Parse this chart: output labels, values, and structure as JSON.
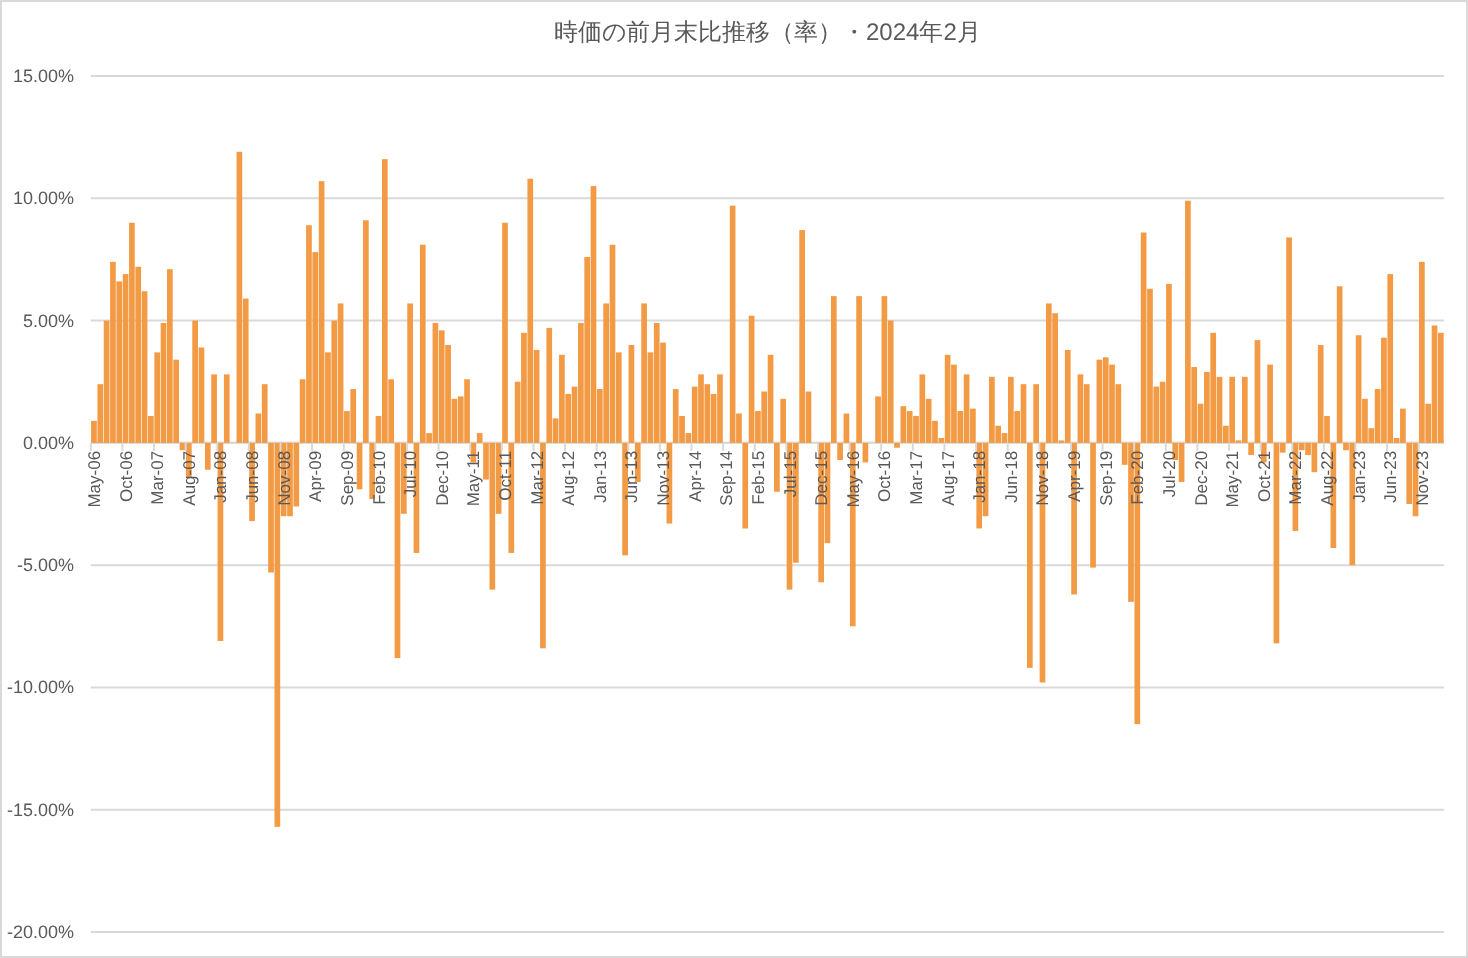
{
  "chart_data": {
    "type": "bar",
    "title": "時価の前月末比推移（率）・2024年2月",
    "categories": [
      "May-06",
      null,
      null,
      null,
      null,
      "Oct-06",
      null,
      null,
      null,
      null,
      "Mar-07",
      null,
      null,
      null,
      null,
      "Aug-07",
      null,
      null,
      null,
      null,
      "Jan-08",
      null,
      null,
      null,
      null,
      "Jun-08",
      null,
      null,
      null,
      null,
      "Nov-08",
      null,
      null,
      null,
      null,
      "Apr-09",
      null,
      null,
      null,
      null,
      "Sep-09",
      null,
      null,
      null,
      null,
      "Feb-10",
      null,
      null,
      null,
      null,
      "Jul-10",
      null,
      null,
      null,
      null,
      "Dec-10",
      null,
      null,
      null,
      null,
      "May-11",
      null,
      null,
      null,
      null,
      "Oct-11",
      null,
      null,
      null,
      null,
      "Mar-12",
      null,
      null,
      null,
      null,
      "Aug-12",
      null,
      null,
      null,
      null,
      "Jan-13",
      null,
      null,
      null,
      null,
      "Jun-13",
      null,
      null,
      null,
      null,
      "Nov-13",
      null,
      null,
      null,
      null,
      "Apr-14",
      null,
      null,
      null,
      null,
      "Sep-14",
      null,
      null,
      null,
      null,
      "Feb-15",
      null,
      null,
      null,
      null,
      "Jul-15",
      null,
      null,
      null,
      null,
      "Dec-15",
      null,
      null,
      null,
      null,
      "May-16",
      null,
      null,
      null,
      null,
      "Oct-16",
      null,
      null,
      null,
      null,
      "Mar-17",
      null,
      null,
      null,
      null,
      "Aug-17",
      null,
      null,
      null,
      null,
      "Jan-18",
      null,
      null,
      null,
      null,
      "Jun-18",
      null,
      null,
      null,
      null,
      "Nov-18",
      null,
      null,
      null,
      null,
      "Apr-19",
      null,
      null,
      null,
      null,
      "Sep-19",
      null,
      null,
      null,
      null,
      "Feb-20",
      null,
      null,
      null,
      null,
      "Jul-20",
      null,
      null,
      null,
      null,
      "Dec-20",
      null,
      null,
      null,
      null,
      "May-21",
      null,
      null,
      null,
      null,
      "Oct-21",
      null,
      null,
      null,
      null,
      "Mar-22",
      null,
      null,
      null,
      null,
      "Aug-22",
      null,
      null,
      null,
      null,
      "Jan-23",
      null,
      null,
      null,
      null,
      "Jun-23",
      null,
      null,
      null,
      null,
      "Nov-23",
      null,
      null,
      null
    ],
    "values": [
      0.9,
      2.4,
      5.0,
      7.4,
      6.6,
      6.9,
      9.0,
      7.2,
      6.2,
      1.1,
      3.7,
      4.9,
      7.1,
      3.4,
      -0.3,
      -1.4,
      5.0,
      3.9,
      -1.1,
      2.8,
      -8.1,
      2.8,
      0.0,
      11.9,
      5.9,
      -3.2,
      1.2,
      2.4,
      -5.3,
      -15.7,
      -3.0,
      -3.0,
      -2.6,
      2.6,
      8.9,
      7.8,
      10.7,
      3.7,
      5.0,
      5.7,
      1.3,
      2.2,
      -1.9,
      9.1,
      -2.3,
      1.1,
      11.6,
      2.6,
      -8.8,
      -2.9,
      5.7,
      -4.5,
      8.1,
      0.4,
      4.9,
      4.6,
      4.0,
      1.8,
      1.9,
      2.6,
      -0.8,
      0.4,
      -1.5,
      -6.0,
      -2.9,
      9.0,
      -4.5,
      2.5,
      4.5,
      10.8,
      3.8,
      -8.4,
      4.7,
      1.0,
      3.6,
      2.0,
      2.3,
      4.9,
      7.6,
      10.5,
      2.2,
      5.7,
      8.1,
      3.7,
      -4.6,
      4.0,
      -1.6,
      5.7,
      3.7,
      4.9,
      4.1,
      -3.3,
      2.2,
      1.1,
      0.4,
      2.3,
      2.8,
      2.4,
      2.0,
      2.8,
      0.0,
      9.7,
      1.2,
      -3.5,
      5.2,
      1.3,
      2.1,
      3.6,
      -2.0,
      1.8,
      -6.0,
      -4.9,
      8.7,
      2.1,
      0.0,
      -5.7,
      -4.1,
      6.0,
      -0.7,
      1.2,
      -7.5,
      6.0,
      -0.8,
      0.0,
      1.9,
      6.0,
      5.0,
      -0.2,
      1.5,
      1.3,
      1.1,
      2.8,
      1.8,
      0.9,
      0.2,
      3.6,
      3.2,
      1.3,
      2.8,
      1.4,
      -3.5,
      -3.0,
      2.7,
      0.7,
      0.4,
      2.7,
      1.3,
      2.4,
      -9.2,
      2.4,
      -9.8,
      5.7,
      5.3,
      0.1,
      3.8,
      -6.2,
      2.8,
      2.4,
      -5.1,
      3.4,
      3.5,
      3.2,
      2.4,
      -0.9,
      -6.5,
      -11.5,
      8.6,
      6.3,
      2.3,
      2.5,
      6.5,
      -0.7,
      -1.6,
      9.9,
      3.1,
      1.6,
      2.9,
      4.5,
      2.7,
      0.7,
      2.7,
      0.1,
      2.7,
      -0.5,
      4.2,
      -0.8,
      3.2,
      -8.2,
      -0.4,
      8.4,
      -3.6,
      -0.3,
      -0.5,
      -1.2,
      4.0,
      1.1,
      -4.3,
      6.4,
      -0.3,
      -5.0,
      4.4,
      1.8,
      0.6,
      2.2,
      4.3,
      6.9,
      0.2,
      1.4,
      -2.5,
      -3.0,
      7.4,
      1.6,
      4.8,
      4.5
    ],
    "color": "#f39a45",
    "ylim": [
      -20,
      15
    ],
    "yticks": [
      {
        "value": -20,
        "label": "-20.00%"
      },
      {
        "value": -15,
        "label": "-15.00%"
      },
      {
        "value": -10,
        "label": "-10.00%"
      },
      {
        "value": -5,
        "label": "-5.00%"
      },
      {
        "value": 0,
        "label": "0.00%"
      },
      {
        "value": 5,
        "label": "5.00%"
      },
      {
        "value": 10,
        "label": "10.00%"
      },
      {
        "value": 15,
        "label": "15.00%"
      }
    ],
    "grid": "y"
  }
}
